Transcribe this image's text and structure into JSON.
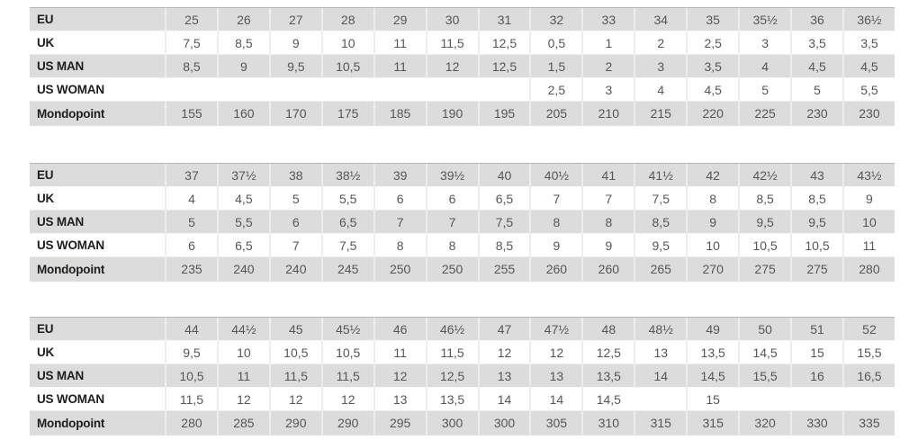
{
  "colors": {
    "stripe_row_bg": "#dcdcdc",
    "plain_row_bg": "#ffffff",
    "label_text": "#1d1d1b",
    "value_text": "#565655",
    "cell_separator": "#ededed",
    "table_top_border": "#b5b5b5"
  },
  "tables": [
    {
      "name": "size-table-eu-25-to-36half",
      "rows": [
        {
          "label": "EU",
          "values": [
            "25",
            "26",
            "27",
            "28",
            "29",
            "30",
            "31",
            "32",
            "33",
            "34",
            "35",
            "35½",
            "36",
            "36½"
          ]
        },
        {
          "label": "UK",
          "values": [
            "7,5",
            "8,5",
            "9",
            "10",
            "11",
            "11,5",
            "12,5",
            "0,5",
            "1",
            "2",
            "2,5",
            "3",
            "3,5",
            "3,5"
          ]
        },
        {
          "label": "US MAN",
          "values": [
            "8,5",
            "9",
            "9,5",
            "10,5",
            "11",
            "12",
            "12,5",
            "1,5",
            "2",
            "3",
            "3,5",
            "4",
            "4,5",
            "4,5"
          ]
        },
        {
          "label": "US WOMAN",
          "values": [
            "",
            "",
            "",
            "",
            "",
            "",
            "",
            "2,5",
            "3",
            "4",
            "4,5",
            "5",
            "5",
            "5,5"
          ]
        },
        {
          "label": "Mondopoint",
          "values": [
            "155",
            "160",
            "170",
            "175",
            "185",
            "190",
            "195",
            "205",
            "210",
            "215",
            "220",
            "225",
            "230",
            "230"
          ]
        }
      ]
    },
    {
      "name": "size-table-eu-37-to-43half",
      "rows": [
        {
          "label": "EU",
          "values": [
            "37",
            "37½",
            "38",
            "38½",
            "39",
            "39½",
            "40",
            "40½",
            "41",
            "41½",
            "42",
            "42½",
            "43",
            "43½"
          ]
        },
        {
          "label": "UK",
          "values": [
            "4",
            "4,5",
            "5",
            "5,5",
            "6",
            "6",
            "6,5",
            "7",
            "7",
            "7,5",
            "8",
            "8,5",
            "8,5",
            "9"
          ]
        },
        {
          "label": "US MAN",
          "values": [
            "5",
            "5,5",
            "6",
            "6,5",
            "7",
            "7",
            "7,5",
            "8",
            "8",
            "8,5",
            "9",
            "9,5",
            "9,5",
            "10"
          ]
        },
        {
          "label": "US WOMAN",
          "values": [
            "6",
            "6,5",
            "7",
            "7,5",
            "8",
            "8",
            "8,5",
            "9",
            "9",
            "9,5",
            "10",
            "10,5",
            "10,5",
            "11"
          ]
        },
        {
          "label": "Mondopoint",
          "values": [
            "235",
            "240",
            "240",
            "245",
            "250",
            "250",
            "255",
            "260",
            "260",
            "265",
            "270",
            "275",
            "275",
            "280"
          ]
        }
      ]
    },
    {
      "name": "size-table-eu-44-to-52",
      "rows": [
        {
          "label": "EU",
          "values": [
            "44",
            "44½",
            "45",
            "45½",
            "46",
            "46½",
            "47",
            "47½",
            "48",
            "48½",
            "49",
            "50",
            "51",
            "52"
          ]
        },
        {
          "label": "UK",
          "values": [
            "9,5",
            "10",
            "10,5",
            "10,5",
            "11",
            "11,5",
            "12",
            "12",
            "12,5",
            "13",
            "13,5",
            "14,5",
            "15",
            "15,5"
          ]
        },
        {
          "label": "US MAN",
          "values": [
            "10,5",
            "11",
            "11,5",
            "11,5",
            "12",
            "12,5",
            "13",
            "13",
            "13,5",
            "14",
            "14,5",
            "15,5",
            "16",
            "16,5"
          ]
        },
        {
          "label": "US WOMAN",
          "values": [
            "11,5",
            "12",
            "12",
            "12",
            "13",
            "13,5",
            "14",
            "14",
            "14,5",
            "",
            "15",
            "",
            "",
            ""
          ]
        },
        {
          "label": "Mondopoint",
          "values": [
            "280",
            "285",
            "290",
            "290",
            "295",
            "300",
            "300",
            "305",
            "310",
            "315",
            "315",
            "320",
            "330",
            "335"
          ]
        }
      ]
    }
  ]
}
